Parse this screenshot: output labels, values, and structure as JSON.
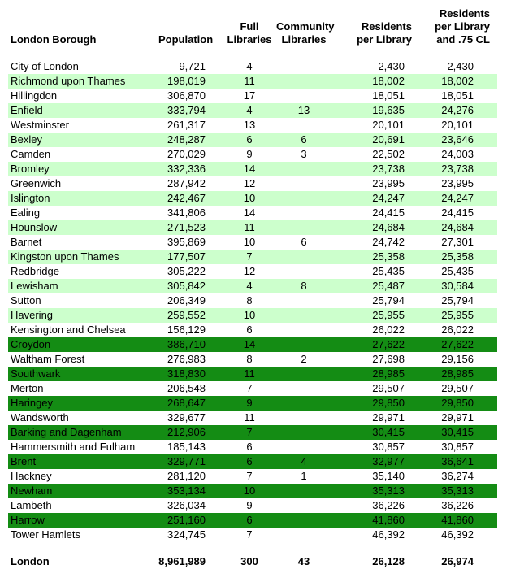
{
  "colors": {
    "light_green_highlight": "#CCFFCC",
    "dark_green_highlight": "#148C14",
    "text": "#000000",
    "background": "#FFFFFF"
  },
  "chart_data": {
    "type": "table",
    "columns": [
      {
        "key": "borough",
        "label": "London Borough"
      },
      {
        "key": "population",
        "label": "Population"
      },
      {
        "key": "full_libraries",
        "label": "Full\nLibraries"
      },
      {
        "key": "community_libraries",
        "label": "Community\nLibraries"
      },
      {
        "key": "residents_per_library",
        "label": "Residents\nper Library"
      },
      {
        "key": "residents_per_library_75cl",
        "label": "Residents\nper Library\nand .75 CL"
      }
    ],
    "rows": [
      {
        "borough": "City of London",
        "population": "9,721",
        "full_libraries": "4",
        "community_libraries": "",
        "residents_per_library": "2,430",
        "residents_per_library_75cl": "2,430",
        "shade": "none"
      },
      {
        "borough": "Richmond upon Thames",
        "population": "198,019",
        "full_libraries": "11",
        "community_libraries": "",
        "residents_per_library": "18,002",
        "residents_per_library_75cl": "18,002",
        "shade": "light"
      },
      {
        "borough": "Hillingdon",
        "population": "306,870",
        "full_libraries": "17",
        "community_libraries": "",
        "residents_per_library": "18,051",
        "residents_per_library_75cl": "18,051",
        "shade": "none"
      },
      {
        "borough": "Enfield",
        "population": "333,794",
        "full_libraries": "4",
        "community_libraries": "13",
        "residents_per_library": "19,635",
        "residents_per_library_75cl": "24,276",
        "shade": "light"
      },
      {
        "borough": "Westminster",
        "population": "261,317",
        "full_libraries": "13",
        "community_libraries": "",
        "residents_per_library": "20,101",
        "residents_per_library_75cl": "20,101",
        "shade": "none"
      },
      {
        "borough": "Bexley",
        "population": "248,287",
        "full_libraries": "6",
        "community_libraries": "6",
        "residents_per_library": "20,691",
        "residents_per_library_75cl": "23,646",
        "shade": "light"
      },
      {
        "borough": "Camden",
        "population": "270,029",
        "full_libraries": "9",
        "community_libraries": "3",
        "residents_per_library": "22,502",
        "residents_per_library_75cl": "24,003",
        "shade": "none"
      },
      {
        "borough": "Bromley",
        "population": "332,336",
        "full_libraries": "14",
        "community_libraries": "",
        "residents_per_library": "23,738",
        "residents_per_library_75cl": "23,738",
        "shade": "light"
      },
      {
        "borough": "Greenwich",
        "population": "287,942",
        "full_libraries": "12",
        "community_libraries": "",
        "residents_per_library": "23,995",
        "residents_per_library_75cl": "23,995",
        "shade": "none"
      },
      {
        "borough": "Islington",
        "population": "242,467",
        "full_libraries": "10",
        "community_libraries": "",
        "residents_per_library": "24,247",
        "residents_per_library_75cl": "24,247",
        "shade": "light"
      },
      {
        "borough": "Ealing",
        "population": "341,806",
        "full_libraries": "14",
        "community_libraries": "",
        "residents_per_library": "24,415",
        "residents_per_library_75cl": "24,415",
        "shade": "none"
      },
      {
        "borough": "Hounslow",
        "population": "271,523",
        "full_libraries": "11",
        "community_libraries": "",
        "residents_per_library": "24,684",
        "residents_per_library_75cl": "24,684",
        "shade": "light"
      },
      {
        "borough": "Barnet",
        "population": "395,869",
        "full_libraries": "10",
        "community_libraries": "6",
        "residents_per_library": "24,742",
        "residents_per_library_75cl": "27,301",
        "shade": "none"
      },
      {
        "borough": "Kingston upon Thames",
        "population": "177,507",
        "full_libraries": "7",
        "community_libraries": "",
        "residents_per_library": "25,358",
        "residents_per_library_75cl": "25,358",
        "shade": "light"
      },
      {
        "borough": "Redbridge",
        "population": "305,222",
        "full_libraries": "12",
        "community_libraries": "",
        "residents_per_library": "25,435",
        "residents_per_library_75cl": "25,435",
        "shade": "none"
      },
      {
        "borough": "Lewisham",
        "population": "305,842",
        "full_libraries": "4",
        "community_libraries": "8",
        "residents_per_library": "25,487",
        "residents_per_library_75cl": "30,584",
        "shade": "light"
      },
      {
        "borough": "Sutton",
        "population": "206,349",
        "full_libraries": "8",
        "community_libraries": "",
        "residents_per_library": "25,794",
        "residents_per_library_75cl": "25,794",
        "shade": "none"
      },
      {
        "borough": "Havering",
        "population": "259,552",
        "full_libraries": "10",
        "community_libraries": "",
        "residents_per_library": "25,955",
        "residents_per_library_75cl": "25,955",
        "shade": "light"
      },
      {
        "borough": "Kensington and Chelsea",
        "population": "156,129",
        "full_libraries": "6",
        "community_libraries": "",
        "residents_per_library": "26,022",
        "residents_per_library_75cl": "26,022",
        "shade": "none"
      },
      {
        "borough": "Croydon",
        "population": "386,710",
        "full_libraries": "14",
        "community_libraries": "",
        "residents_per_library": "27,622",
        "residents_per_library_75cl": "27,622",
        "shade": "dark"
      },
      {
        "borough": "Waltham Forest",
        "population": "276,983",
        "full_libraries": "8",
        "community_libraries": "2",
        "residents_per_library": "27,698",
        "residents_per_library_75cl": "29,156",
        "shade": "none"
      },
      {
        "borough": "Southwark",
        "population": "318,830",
        "full_libraries": "11",
        "community_libraries": "",
        "residents_per_library": "28,985",
        "residents_per_library_75cl": "28,985",
        "shade": "dark"
      },
      {
        "borough": "Merton",
        "population": "206,548",
        "full_libraries": "7",
        "community_libraries": "",
        "residents_per_library": "29,507",
        "residents_per_library_75cl": "29,507",
        "shade": "none"
      },
      {
        "borough": "Haringey",
        "population": "268,647",
        "full_libraries": "9",
        "community_libraries": "",
        "residents_per_library": "29,850",
        "residents_per_library_75cl": "29,850",
        "shade": "dark"
      },
      {
        "borough": "Wandsworth",
        "population": "329,677",
        "full_libraries": "11",
        "community_libraries": "",
        "residents_per_library": "29,971",
        "residents_per_library_75cl": "29,971",
        "shade": "none"
      },
      {
        "borough": "Barking and Dagenham",
        "population": "212,906",
        "full_libraries": "7",
        "community_libraries": "",
        "residents_per_library": "30,415",
        "residents_per_library_75cl": "30,415",
        "shade": "dark"
      },
      {
        "borough": "Hammersmith and Fulham",
        "population": "185,143",
        "full_libraries": "6",
        "community_libraries": "",
        "residents_per_library": "30,857",
        "residents_per_library_75cl": "30,857",
        "shade": "none"
      },
      {
        "borough": "Brent",
        "population": "329,771",
        "full_libraries": "6",
        "community_libraries": "4",
        "residents_per_library": "32,977",
        "residents_per_library_75cl": "36,641",
        "shade": "dark"
      },
      {
        "borough": "Hackney",
        "population": "281,120",
        "full_libraries": "7",
        "community_libraries": "1",
        "residents_per_library": "35,140",
        "residents_per_library_75cl": "36,274",
        "shade": "none"
      },
      {
        "borough": "Newham",
        "population": "353,134",
        "full_libraries": "10",
        "community_libraries": "",
        "residents_per_library": "35,313",
        "residents_per_library_75cl": "35,313",
        "shade": "dark"
      },
      {
        "borough": "Lambeth",
        "population": "326,034",
        "full_libraries": "9",
        "community_libraries": "",
        "residents_per_library": "36,226",
        "residents_per_library_75cl": "36,226",
        "shade": "none"
      },
      {
        "borough": "Harrow",
        "population": "251,160",
        "full_libraries": "6",
        "community_libraries": "",
        "residents_per_library": "41,860",
        "residents_per_library_75cl": "41,860",
        "shade": "dark"
      },
      {
        "borough": "Tower Hamlets",
        "population": "324,745",
        "full_libraries": "7",
        "community_libraries": "",
        "residents_per_library": "46,392",
        "residents_per_library_75cl": "46,392",
        "shade": "none"
      }
    ],
    "total": {
      "borough": "London",
      "population": "8,961,989",
      "full_libraries": "300",
      "community_libraries": "43",
      "residents_per_library": "26,128",
      "residents_per_library_75cl": "26,974"
    }
  }
}
